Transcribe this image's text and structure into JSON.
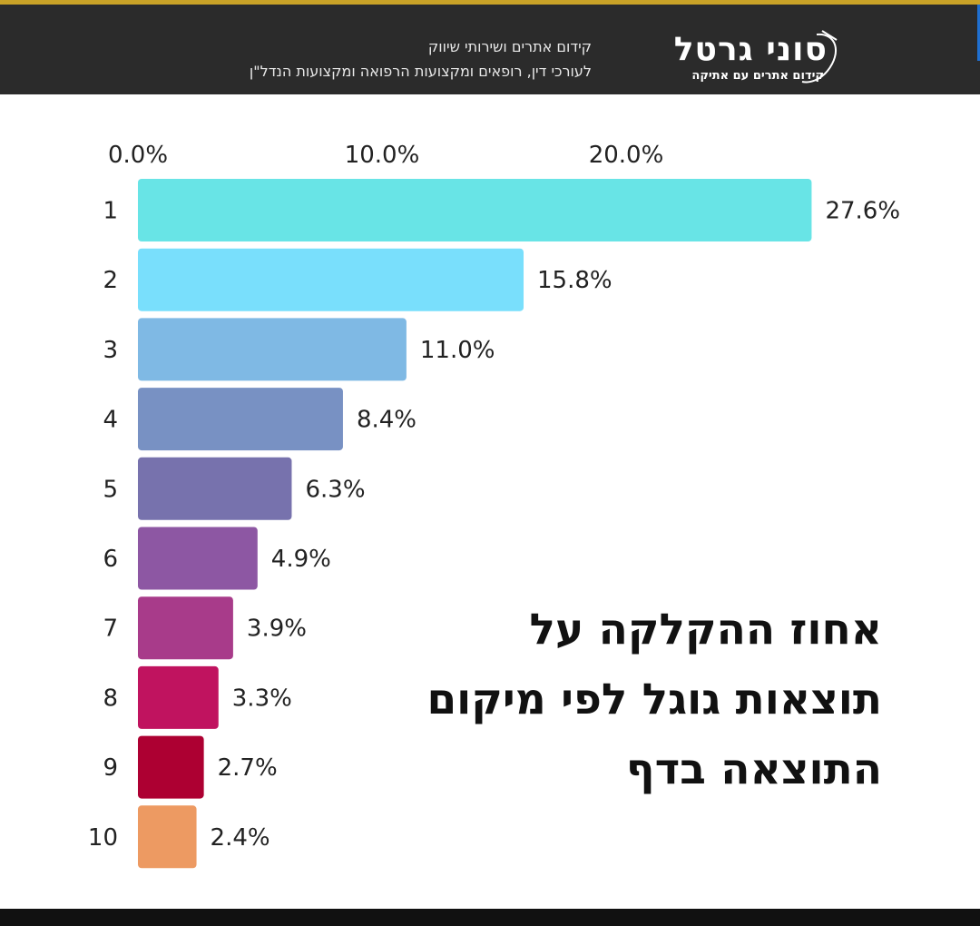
{
  "header": {
    "tagline_line1": "קידום אתרים ושירותי שיווק",
    "tagline_line2": "לעורכי דין, רופאים ומקצועות הרפואה ומקצועות הנדל\"ן",
    "logo_name": "סוני גרטל",
    "logo_sub": "קידום אתרים עם אתיקה"
  },
  "headline": {
    "line1": "אחוז ההקלקה על",
    "line2": "תוצאות גוגל לפי מיקום",
    "line3": "התוצאה בדף"
  },
  "colors": {
    "header_bg": "#2b2b2b",
    "accent_strip": "#c9a227",
    "bars": [
      "#68e4e6",
      "#79dffc",
      "#7fb9e4",
      "#7891c3",
      "#7772ad",
      "#8d57a3",
      "#a83b8a",
      "#c0135f",
      "#ad0032",
      "#ed9a62"
    ]
  },
  "chart_data": {
    "type": "bar",
    "orientation": "horizontal",
    "categories": [
      "1",
      "2",
      "3",
      "4",
      "5",
      "6",
      "7",
      "8",
      "9",
      "10"
    ],
    "values": [
      27.6,
      15.8,
      11.0,
      8.4,
      6.3,
      4.9,
      3.9,
      3.3,
      2.7,
      2.4
    ],
    "value_labels": [
      "27.6%",
      "15.8%",
      "11.0%",
      "8.4%",
      "6.3%",
      "4.9%",
      "3.9%",
      "3.3%",
      "2.7%",
      "2.4%"
    ],
    "x_ticks": [
      0,
      10,
      20
    ],
    "x_tick_labels": [
      "0.0%",
      "10.0%",
      "20.0%"
    ],
    "xaxis_position": "top",
    "grid": false,
    "title": "",
    "xlabel": "",
    "ylabel": ""
  }
}
